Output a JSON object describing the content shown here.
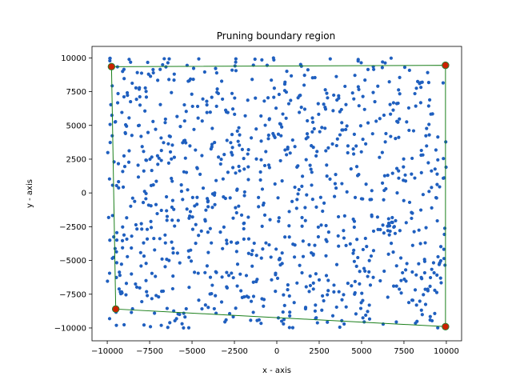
{
  "chart_data": {
    "type": "scatter",
    "title": "Pruning boundary region",
    "xlabel": "x - axis",
    "ylabel": "y - axis",
    "xlim": [
      -10900,
      10900
    ],
    "ylim": [
      -10950,
      10850
    ],
    "xticks": [
      -10000,
      -7500,
      -5000,
      -2500,
      0,
      2500,
      5000,
      7500,
      10000
    ],
    "yticks": [
      -10000,
      -7500,
      -5000,
      -2500,
      0,
      2500,
      5000,
      7500,
      10000
    ],
    "xtick_labels": [
      "−10000",
      "−7500",
      "−5000",
      "−2500",
      "0",
      "2500",
      "5000",
      "7500",
      "10000"
    ],
    "ytick_labels": [
      "−10000",
      "−7500",
      "−5000",
      "−2500",
      "0",
      "2500",
      "5000",
      "7500",
      "10000"
    ],
    "grid": false,
    "legend": "none",
    "point_color": "#1f5fbf",
    "boundary_color": "#1a7f1a",
    "corner_fill": "#cc2200",
    "corner_edge": "#2e7d32",
    "point_count_estimate": 1000,
    "point_distribution": "uniform",
    "point_seed": 7,
    "boundary_polygon": [
      {
        "x": -9750,
        "y": 9350
      },
      {
        "x": 9950,
        "y": 9450
      },
      {
        "x": 9950,
        "y": -9900
      },
      {
        "x": -9500,
        "y": -8600
      },
      {
        "x": -9750,
        "y": 9350
      }
    ],
    "corner_points": [
      {
        "x": -9750,
        "y": 9350
      },
      {
        "x": 9950,
        "y": 9450
      },
      {
        "x": 9950,
        "y": -9900
      },
      {
        "x": -9500,
        "y": -8600
      }
    ]
  }
}
